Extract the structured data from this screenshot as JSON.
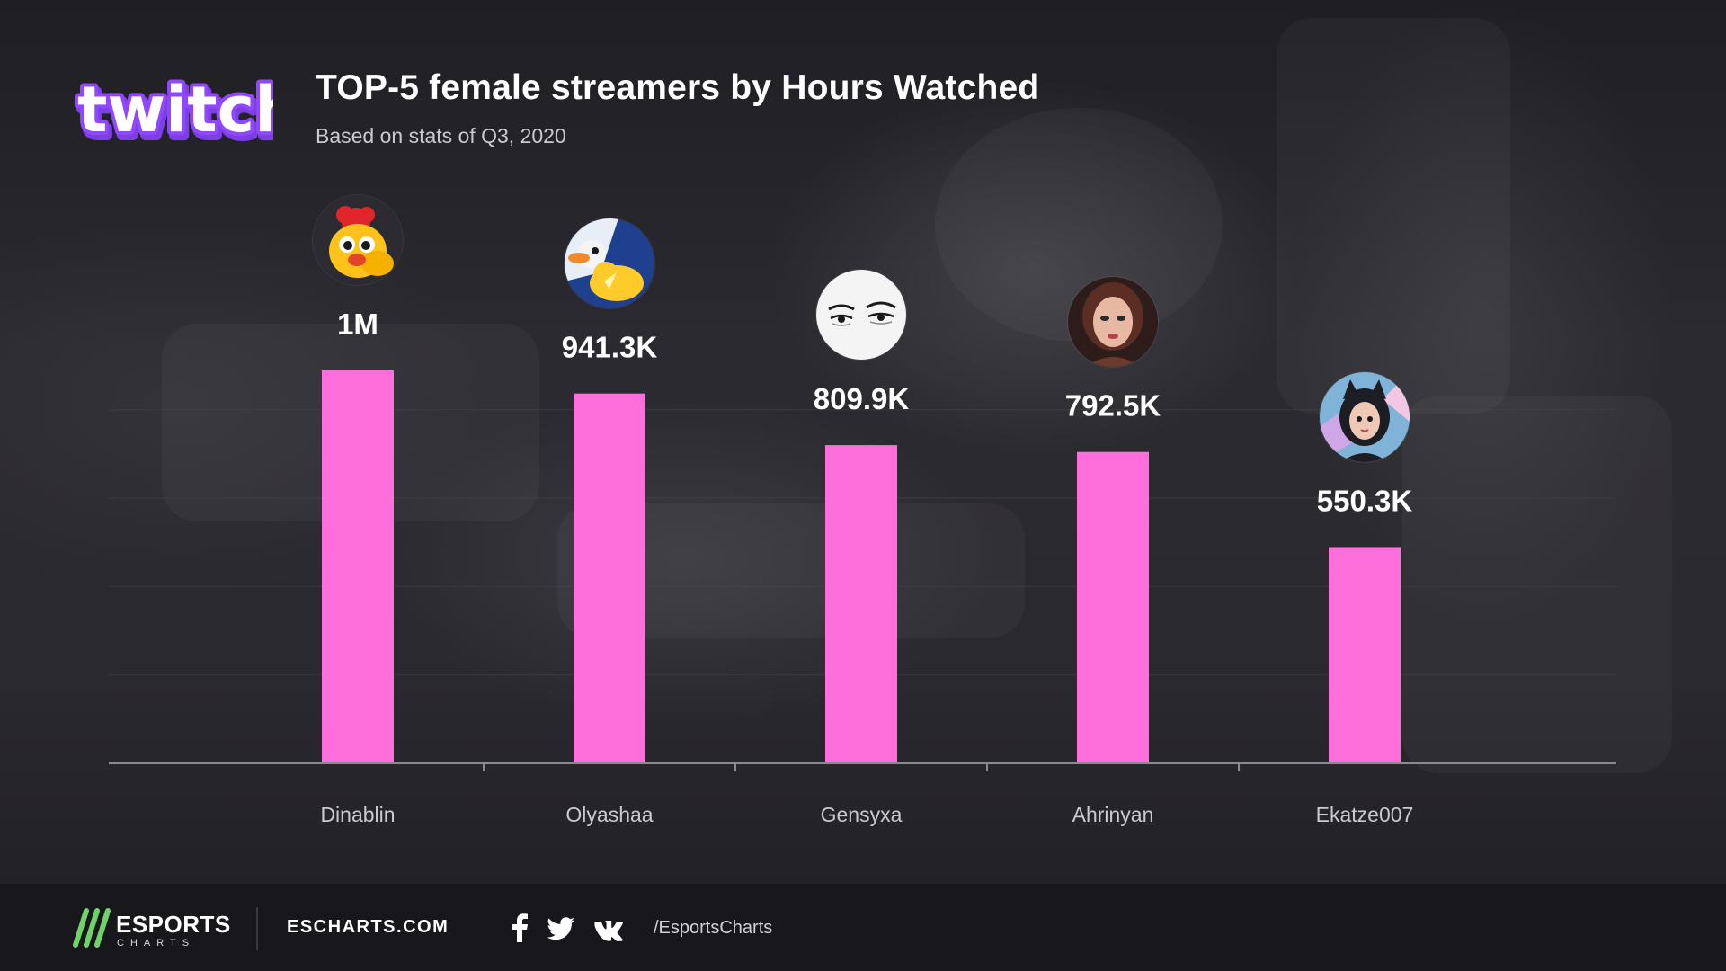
{
  "header": {
    "logo_text": "twitch",
    "title": "TOP-5 female streamers by Hours Watched",
    "subtitle": "Based on stats of Q3, 2020"
  },
  "colors": {
    "bar": "#ff6fdc",
    "twitch_purple": "#9146ff",
    "esports_green": "#6fd36a",
    "axis": "#8a8a92",
    "grid": "#4a4950"
  },
  "chart_data": {
    "type": "bar",
    "title": "TOP-5 female streamers by Hours Watched",
    "subtitle": "Based on stats of Q3, 2020",
    "categories": [
      "Dinablin",
      "Olyashaa",
      "Gensyxa",
      "Ahrinyan",
      "Ekatze007"
    ],
    "values": [
      1000000,
      941300,
      809900,
      792500,
      550300
    ],
    "value_labels": [
      "1M",
      "941.3K",
      "809.9K",
      "792.5K",
      "550.3K"
    ],
    "avatars": [
      "chicken-avatar-icon",
      "duck-avatar-icon",
      "eyes-avatar-icon",
      "portrait-avatar-icon",
      "cat-girl-avatar-icon"
    ],
    "xlabel": "",
    "ylabel": "",
    "ylim": [
      0,
      1000000
    ],
    "grid": true,
    "legend": "none"
  },
  "footer": {
    "brand_name": "ESPORTS",
    "brand_sub": "CHARTS",
    "site": "ESCHARTS.COM",
    "social_icons": [
      "facebook-icon",
      "twitter-icon",
      "vk-icon"
    ],
    "handle": "/EsportsCharts"
  }
}
